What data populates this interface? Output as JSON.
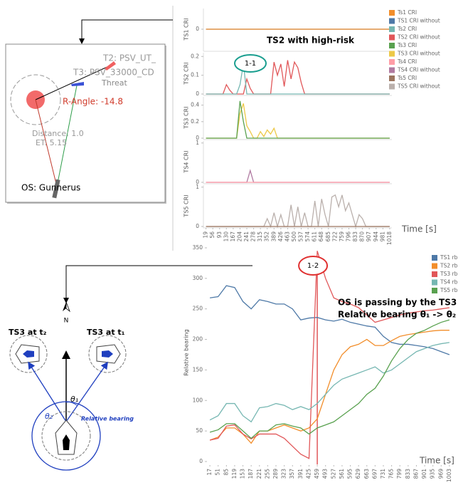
{
  "screenshot": {
    "target_2": "T2: PSV_UT_",
    "target_3": "T3: PSV_33000_CD",
    "threat": "Threat",
    "r_angle": "R-Angle: -14.8",
    "distance": "Distance: 1.0",
    "et": "ET: 5.15",
    "own_ship": "OS: Gunnerus"
  },
  "diagram": {
    "north": "N",
    "ts3_t2": "TS3 at t₂",
    "ts3_t1": "TS3 at t₁",
    "theta_1": "θ₁",
    "theta_2": "θ₂",
    "relative_bearing": "Relative bearing"
  },
  "chart_data": [
    {
      "type": "panels",
      "title": "TS2 with high-risk",
      "marker": "1-1",
      "xlabel": "Time [s]",
      "x": [
        19,
        37.5,
        56,
        74.5,
        93,
        111.5,
        130,
        148.5,
        167,
        185.5,
        204,
        222.5,
        241,
        259.5,
        278,
        296.5,
        315,
        333.5,
        352,
        370.5,
        389,
        407.5,
        426,
        444.5,
        463,
        481.5,
        500,
        518.5,
        537,
        555.5,
        574,
        592.5,
        611,
        629.5,
        648,
        666.5,
        685,
        703.5,
        722,
        740.5,
        759,
        777.5,
        796,
        814.5,
        833,
        851.5,
        870,
        888.5,
        907,
        925.5,
        944,
        962.5,
        981,
        999.5,
        1018
      ],
      "xlim": [
        5,
        1030
      ],
      "xticks": [
        19,
        56,
        93,
        130,
        167,
        204,
        241,
        278,
        315,
        352,
        389,
        426,
        463,
        500,
        537,
        574,
        611,
        648,
        685,
        722,
        759,
        796,
        833,
        870,
        907,
        944,
        981,
        1018
      ],
      "panels": [
        {
          "ylabel": "TS1 CRI",
          "ylim": [
            -1,
            1
          ],
          "yticks": [
            0
          ],
          "series": [
            {
              "name": "Ts1 CRI",
              "color": "#f28e2b",
              "values": [
                0,
                0,
                0,
                0,
                0,
                0,
                0,
                0,
                0,
                0,
                0,
                0,
                0,
                0,
                0,
                0,
                0,
                0,
                0,
                0,
                0,
                0,
                0,
                0,
                0,
                0,
                0,
                0,
                0,
                0,
                0,
                0,
                0,
                0,
                0,
                0,
                0,
                0,
                0,
                0,
                0,
                0,
                0,
                0,
                0,
                0,
                0,
                0,
                0,
                0,
                0,
                0,
                0,
                0,
                0
              ]
            },
            {
              "name": "TS1 CRI without",
              "color": "#4e79a7",
              "values": [
                0,
                0,
                0,
                0,
                0,
                0,
                0,
                0,
                0,
                0,
                0,
                0,
                0,
                0,
                0,
                0,
                0,
                0,
                0,
                0,
                0,
                0,
                0,
                0,
                0,
                0,
                0,
                0,
                0,
                0,
                0,
                0,
                0,
                0,
                0,
                0,
                0,
                0,
                0,
                0,
                0,
                0,
                0,
                0,
                0,
                0,
                0,
                0,
                0,
                0,
                0,
                0,
                0,
                0,
                0
              ]
            }
          ]
        },
        {
          "ylabel": "TS2 CRI",
          "ylim": [
            0,
            0.22
          ],
          "yticks": [
            0,
            0.1,
            0.2
          ],
          "series": [
            {
              "name": "Ts2 CRI",
              "color": "#76b7b2",
              "values": [
                0,
                0,
                0,
                0,
                0,
                0,
                0,
                0,
                0,
                0,
                0.05,
                0.16,
                0,
                0,
                0,
                0,
                0,
                0,
                0,
                0,
                0,
                0,
                0,
                0,
                0,
                0,
                0,
                0,
                0,
                0,
                0,
                0,
                0,
                0,
                0,
                0,
                0,
                0,
                0,
                0,
                0,
                0,
                0,
                0,
                0,
                0,
                0,
                0,
                0,
                0,
                0,
                0,
                0,
                0,
                0
              ]
            },
            {
              "name": "TS2 CRI without",
              "color": "#e15759",
              "values": [
                0,
                0,
                0,
                0,
                0,
                0,
                0.05,
                0.02,
                0,
                0,
                0,
                0,
                0.08,
                0.03,
                0,
                0,
                0,
                0,
                0,
                0,
                0.17,
                0.1,
                0.16,
                0.04,
                0.18,
                0.08,
                0.17,
                0.14,
                0.06,
                0,
                0,
                0,
                0,
                0,
                0,
                0,
                0,
                0,
                0,
                0,
                0,
                0,
                0,
                0,
                0,
                0,
                0,
                0,
                0,
                0,
                0,
                0,
                0,
                0,
                0
              ]
            }
          ]
        },
        {
          "ylabel": "TS3 CRI",
          "ylim": [
            0,
            0.5
          ],
          "yticks": [
            0,
            0.2,
            0.4
          ],
          "series": [
            {
              "name": "Ts3 CRI",
              "color": "#59a14f",
              "values": [
                0,
                0,
                0,
                0,
                0,
                0,
                0,
                0,
                0,
                0,
                0.45,
                0.2,
                0,
                0,
                0,
                0,
                0,
                0,
                0,
                0,
                0,
                0,
                0,
                0,
                0,
                0,
                0,
                0,
                0,
                0,
                0,
                0,
                0,
                0,
                0,
                0,
                0,
                0,
                0,
                0,
                0,
                0,
                0,
                0,
                0,
                0,
                0,
                0,
                0,
                0,
                0,
                0,
                0,
                0,
                0
              ]
            },
            {
              "name": "TS3 CRI without",
              "color": "#edc948",
              "values": [
                0,
                0,
                0,
                0,
                0,
                0,
                0,
                0,
                0,
                0,
                0.3,
                0.42,
                0.15,
                0.08,
                0,
                0,
                0.08,
                0.02,
                0.1,
                0.05,
                0.12,
                0,
                0,
                0,
                0,
                0,
                0,
                0,
                0,
                0,
                0,
                0,
                0,
                0,
                0,
                0,
                0,
                0,
                0,
                0,
                0,
                0,
                0,
                0,
                0,
                0,
                0,
                0,
                0,
                0,
                0,
                0,
                0,
                0,
                0
              ]
            }
          ]
        },
        {
          "ylabel": "TS4 CRI",
          "ylim": [
            0,
            1.05
          ],
          "yticks": [
            0,
            1
          ],
          "series": [
            {
              "name": "Ts4 CRI",
              "color": "#ff9da7",
              "values": [
                0,
                0,
                0,
                0,
                0,
                0,
                0,
                0,
                0,
                0,
                0,
                0,
                0,
                0,
                0,
                0,
                0,
                0,
                0,
                0,
                0,
                0,
                0,
                0,
                0,
                0,
                0,
                0,
                0,
                0,
                0,
                0,
                0,
                0,
                0,
                0,
                0,
                0,
                0,
                0,
                0,
                0,
                0,
                0,
                0,
                0,
                0,
                0,
                0,
                0,
                0,
                0,
                0,
                0,
                0
              ]
            },
            {
              "name": "TS4 CRI without",
              "color": "#b07aa1",
              "values": [
                0,
                0,
                0,
                0,
                0,
                0,
                0,
                0,
                0,
                0,
                0,
                0,
                0,
                0.3,
                0,
                0,
                0,
                0,
                0,
                0,
                0,
                0,
                0,
                0,
                0,
                0,
                0,
                0,
                0,
                0,
                0,
                0,
                0,
                0,
                0,
                0,
                0,
                0,
                0,
                0,
                0,
                0,
                0,
                0,
                0,
                0,
                0,
                0,
                0,
                0,
                0,
                0,
                0,
                0,
                0
              ]
            }
          ]
        },
        {
          "ylabel": "TS5 CRI",
          "ylim": [
            0,
            1.05
          ],
          "yticks": [
            0,
            1
          ],
          "series": [
            {
              "name": "Ts5 CRI",
              "color": "#9c755f",
              "values": [
                0,
                0,
                0,
                0,
                0,
                0,
                0,
                0,
                0,
                0,
                0,
                0,
                0,
                0,
                0,
                0,
                0,
                0,
                0,
                0,
                0,
                0,
                0,
                0,
                0,
                0,
                0,
                0,
                0,
                0,
                0,
                0,
                0,
                0,
                0,
                0,
                0,
                0,
                0,
                0,
                0,
                0,
                0,
                0,
                0,
                0,
                0,
                0,
                0,
                0,
                0,
                0,
                0,
                0,
                0
              ]
            },
            {
              "name": "TS5 CRI without",
              "color": "#bab0ac",
              "values": [
                0,
                0,
                0,
                0,
                0,
                0,
                0,
                0,
                0,
                0,
                0,
                0,
                0,
                0,
                0,
                0,
                0,
                0,
                0.2,
                0,
                0.35,
                0,
                0.3,
                0,
                0,
                0.55,
                0,
                0.5,
                0,
                0.35,
                0,
                0,
                0.65,
                0,
                0.7,
                0.3,
                0,
                0.75,
                0.8,
                0.5,
                0.8,
                0.4,
                0.6,
                0.3,
                0,
                0.3,
                0.2,
                0,
                0,
                0,
                0,
                0,
                0,
                0,
                0
              ]
            }
          ]
        }
      ]
    },
    {
      "type": "line",
      "marker": "1-2",
      "annotation_1": "OS is passing by the TS3",
      "annotation_2": "Relative bearing θ₁ -> θ₂",
      "xlabel": "Time [s]",
      "ylabel": "Relative bearing",
      "x": [
        17,
        51,
        85,
        119,
        153,
        187,
        221,
        255,
        289,
        323,
        357,
        391,
        425,
        459,
        493,
        527,
        561,
        595,
        629,
        663,
        697,
        731,
        765,
        799,
        833,
        867,
        901,
        935,
        969,
        1003
      ],
      "xlim": [
        5,
        1015
      ],
      "xticks": [
        17,
        51,
        85,
        119,
        153,
        187,
        221,
        255,
        289,
        323,
        357,
        391,
        425,
        459,
        493,
        527,
        561,
        595,
        629,
        663,
        697,
        731,
        765,
        799,
        833,
        867,
        901,
        935,
        969,
        1003
      ],
      "ylim": [
        -5,
        360
      ],
      "yticks": [
        0,
        50,
        100,
        150,
        200,
        250,
        300,
        350
      ],
      "series": [
        {
          "name": "TS1 rb",
          "color": "#4e79a7",
          "values": [
            268,
            270,
            288,
            285,
            262,
            250,
            265,
            262,
            258,
            258,
            250,
            232,
            235,
            236,
            232,
            230,
            233,
            228,
            225,
            222,
            220,
            205,
            195,
            192,
            192,
            190,
            188,
            185,
            180,
            175
          ]
        },
        {
          "name": "TS2 rb",
          "color": "#f28e2b",
          "values": [
            35,
            40,
            55,
            55,
            45,
            30,
            50,
            50,
            55,
            60,
            55,
            50,
            55,
            70,
            110,
            150,
            175,
            188,
            192,
            200,
            190,
            190,
            198,
            205,
            208,
            210,
            212,
            214,
            215,
            215
          ]
        },
        {
          "name": "TS3 rb",
          "color": "#e15759",
          "values": [
            35,
            38,
            58,
            60,
            45,
            37,
            45,
            45,
            45,
            38,
            25,
            12,
            5,
            345,
            300,
            268,
            262,
            258,
            252,
            240,
            228,
            232,
            236,
            240,
            243,
            245,
            247,
            248,
            250,
            252
          ]
        },
        {
          "name": "TS4 rb",
          "color": "#76b7b2",
          "values": [
            68,
            75,
            95,
            95,
            75,
            65,
            88,
            90,
            95,
            92,
            85,
            90,
            85,
            95,
            110,
            125,
            135,
            140,
            145,
            150,
            155,
            145,
            150,
            160,
            170,
            180,
            185,
            190,
            193,
            195
          ]
        },
        {
          "name": "TS5 rb",
          "color": "#59a14f",
          "values": [
            48,
            52,
            62,
            62,
            50,
            38,
            50,
            50,
            60,
            62,
            58,
            55,
            45,
            55,
            60,
            65,
            75,
            85,
            95,
            110,
            120,
            140,
            165,
            185,
            200,
            210,
            215,
            222,
            228,
            232
          ]
        }
      ]
    }
  ]
}
